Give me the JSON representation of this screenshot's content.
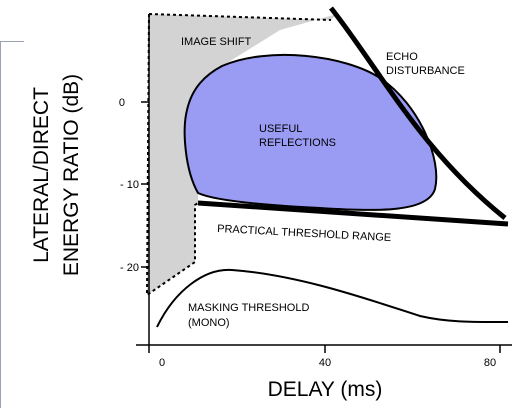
{
  "axes": {
    "x_title": "DELAY (ms)",
    "y_title_line1": "LATERAL/DIRECT",
    "y_title_line2": "ENERGY RATIO (dB)",
    "x_ticks": [
      "0",
      "40",
      "80"
    ],
    "y_ticks": [
      "0",
      "- 10",
      "- 20"
    ]
  },
  "regions": {
    "image_shift": "IMAGE SHIFT",
    "echo_line1": "ECHO",
    "echo_line2": "DISTURBANCE",
    "useful_line1": "USEFUL",
    "useful_line2": "REFLECTIONS",
    "practical": "PRACTICAL THRESHOLD RANGE",
    "masking_line1": "MASKING THRESHOLD",
    "masking_line2": "(MONO)"
  },
  "colors": {
    "useful_fill": "#9a9cf4",
    "image_shift_fill": "#d3d3d3",
    "ink": "#000000"
  }
}
